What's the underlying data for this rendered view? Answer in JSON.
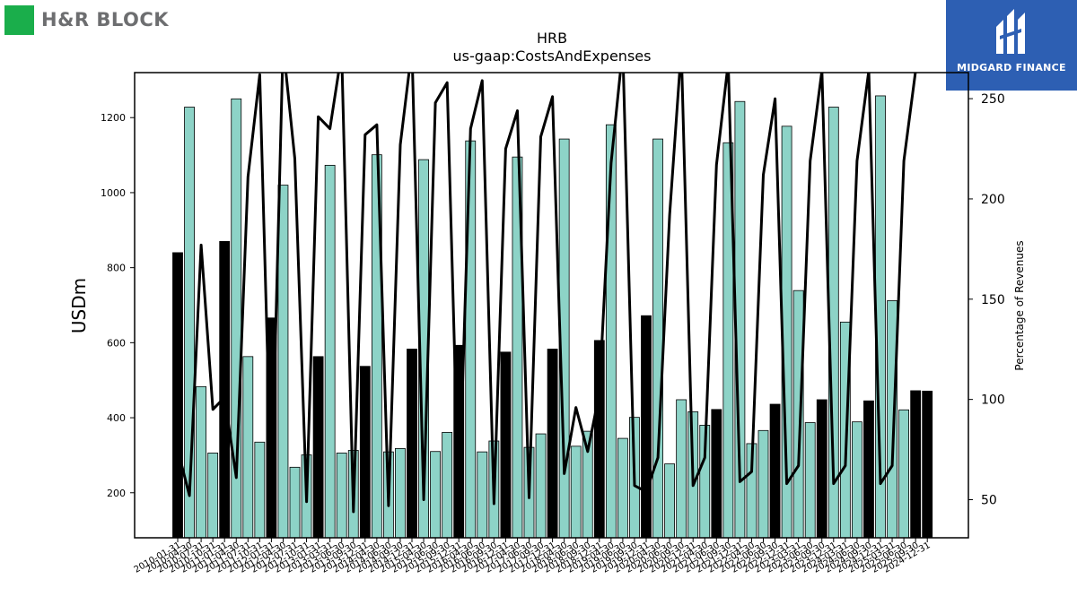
{
  "logos": {
    "left_brand": "H&R BLOCK",
    "right_brand": "MIDGARD FINANCE",
    "left_color": "#1aae4b",
    "right_bg": "#2d5fb3"
  },
  "chart_data": {
    "type": "bar",
    "title": "HRB",
    "subtitle": "us-gaap:CostsAndExpenses",
    "ylabel": "USDm",
    "y2label": "Percentage of Revenues",
    "ylim": [
      80,
      1320
    ],
    "y2lim": [
      31,
      263
    ],
    "yticks": [
      200,
      400,
      600,
      800,
      1000,
      1200
    ],
    "y2ticks": [
      50,
      100,
      150,
      200,
      250
    ],
    "grid": false,
    "bar_colors": {
      "annual": "#000000",
      "quarter": "#8dd3c7"
    },
    "line_color": "#000000",
    "x_tick_labels": [
      "2010-01-31",
      "2010-04-30",
      "2010-07-31",
      "2010-10-31",
      "2011-01-31",
      "2011-04-30",
      "2011-07-31",
      "2011-10-31",
      "2012-01-31",
      "2012-04-30",
      "2012-07-31",
      "2012-10-31",
      "2013-01-31",
      "2013-03-31",
      "2013-06-30",
      "2013-09-30",
      "2013-12-31",
      "2014-04-30",
      "2014-06-30",
      "2014-09-30",
      "2014-12-31",
      "2015-04-30",
      "2015-06-30",
      "2015-09-30",
      "2015-12-31",
      "2016-04-30",
      "2016-06-30",
      "2016-09-30",
      "2016-12-31",
      "2017-04-30",
      "2017-06-30",
      "2017-09-30",
      "2017-12-31",
      "2018-04-30",
      "2018-06-30",
      "2018-09-30",
      "2018-12-31",
      "2019-04-30",
      "2019-06-30",
      "2019-09-30",
      "2019-12-31",
      "2020-04-30",
      "2020-06-30",
      "2020-09-30",
      "2020-12-31",
      "2021-04-30",
      "2021-06-30",
      "2021-09-30",
      "2021-12-31",
      "2022-04-30",
      "2022-06-30",
      "2022-09-30",
      "2022-12-31",
      "2023-03-31",
      "2023-06-30",
      "2023-09-30",
      "2023-12-31",
      "2024-03-31",
      "2024-06-30",
      "2024-09-30",
      "2024-12-31",
      "2025-03-31",
      "2025-06-30",
      "2025-09-30",
      "2024-12-31"
    ],
    "values": [
      840,
      1228,
      483,
      306,
      870,
      1250,
      563,
      335,
      666,
      1020,
      268,
      301,
      563,
      1073,
      306,
      313,
      537,
      1101,
      309,
      318,
      583,
      1088,
      310,
      361,
      593,
      1138,
      309,
      338,
      575,
      1095,
      321,
      357,
      583,
      1143,
      324,
      364,
      606,
      1181,
      345,
      401,
      672,
      1143,
      277,
      448,
      416,
      380,
      422,
      1133,
      1243,
      331,
      366,
      436,
      1177,
      739,
      387,
      448,
      1228,
      655,
      389,
      445,
      1258,
      712,
      421,
      472,
      471
    ],
    "annual_flags": [
      1,
      0,
      0,
      0,
      1,
      0,
      0,
      0,
      1,
      0,
      0,
      0,
      1,
      0,
      0,
      0,
      1,
      0,
      0,
      0,
      1,
      0,
      0,
      0,
      1,
      0,
      0,
      0,
      1,
      0,
      0,
      0,
      1,
      0,
      0,
      0,
      1,
      0,
      0,
      0,
      1,
      0,
      0,
      0,
      0,
      0,
      1,
      0,
      0,
      0,
      0,
      1,
      0,
      0,
      0,
      1,
      0,
      0,
      0,
      1,
      0,
      0,
      0,
      1,
      1
    ],
    "line_pct": [
      75,
      52,
      177,
      95,
      101,
      61,
      211,
      262,
      52,
      277,
      220,
      49,
      241,
      235,
      273,
      44,
      232,
      237,
      47,
      227,
      275,
      50,
      248,
      258,
      47,
      235,
      259,
      48,
      225,
      244,
      51,
      231,
      251,
      63,
      96,
      74,
      103,
      218,
      275,
      57,
      54,
      71,
      192,
      275,
      57,
      71,
      217,
      268,
      59,
      64,
      212,
      250,
      58,
      67,
      219,
      264,
      58,
      67,
      219,
      264,
      58,
      67,
      219,
      264,
      264
    ]
  }
}
